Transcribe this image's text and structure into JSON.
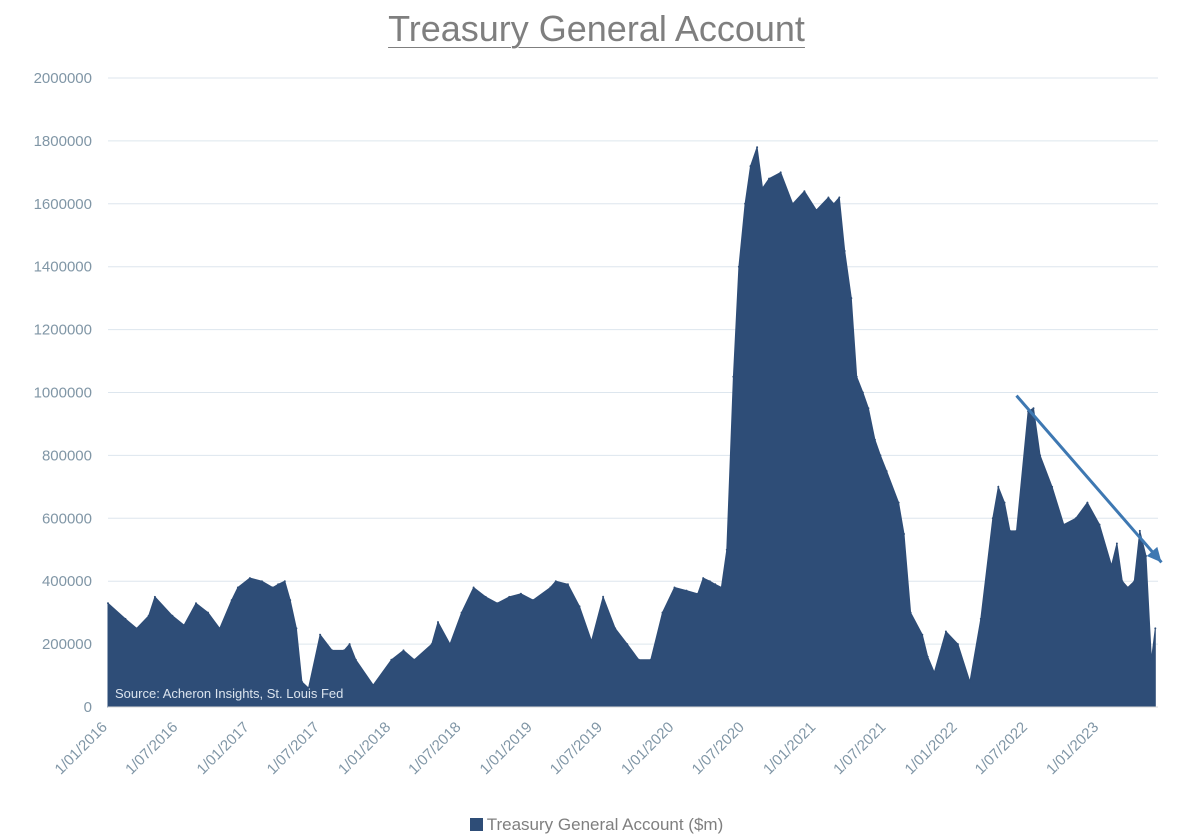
{
  "chart_data": {
    "type": "area",
    "title": "Treasury General Account",
    "xlabel": "",
    "ylabel": "",
    "ylim": [
      0,
      2000000
    ],
    "yticks": [
      0,
      200000,
      400000,
      600000,
      800000,
      1000000,
      1200000,
      1400000,
      1600000,
      1800000,
      2000000
    ],
    "xlim": [
      "2016-01-01",
      "2023-06-01"
    ],
    "xtick_labels": [
      "1/01/2016",
      "1/07/2016",
      "1/01/2017",
      "1/07/2017",
      "1/01/2018",
      "1/07/2018",
      "1/01/2019",
      "1/07/2019",
      "1/01/2020",
      "1/07/2020",
      "1/01/2021",
      "1/07/2021",
      "1/01/2022",
      "1/07/2022",
      "1/01/2023"
    ],
    "xtick_dates": [
      "2016-01-01",
      "2016-07-01",
      "2017-01-01",
      "2017-07-01",
      "2018-01-01",
      "2018-07-01",
      "2019-01-01",
      "2019-07-01",
      "2020-01-01",
      "2020-07-01",
      "2021-01-01",
      "2021-07-01",
      "2022-01-01",
      "2022-07-01",
      "2023-01-01"
    ],
    "grid": true,
    "legend_position": "bottom",
    "colors": {
      "series": "#2e4d77",
      "arrow": "#3e78b2",
      "grid": "#dde6ee",
      "tick_text": "#8096a6"
    },
    "annotation": "Source: Acheron Insights, St. Louis Fed",
    "trend_arrow": {
      "from": [
        "2022-06-01",
        990000
      ],
      "to": [
        "2023-06-10",
        460000
      ]
    },
    "series": [
      {
        "name": "Treasury General Account ($m)",
        "x": [
          "2016-01-01",
          "2016-02-15",
          "2016-03-15",
          "2016-04-15",
          "2016-05-01",
          "2016-06-15",
          "2016-07-15",
          "2016-08-15",
          "2016-09-15",
          "2016-10-15",
          "2016-11-15",
          "2016-12-01",
          "2017-01-01",
          "2017-02-01",
          "2017-03-01",
          "2017-03-15",
          "2017-04-01",
          "2017-04-15",
          "2017-05-01",
          "2017-05-15",
          "2017-06-01",
          "2017-07-01",
          "2017-08-01",
          "2017-09-01",
          "2017-09-15",
          "2017-10-01",
          "2017-11-15",
          "2018-01-01",
          "2018-02-01",
          "2018-03-01",
          "2018-04-15",
          "2018-05-01",
          "2018-06-01",
          "2018-07-01",
          "2018-08-01",
          "2018-09-01",
          "2018-10-01",
          "2018-11-01",
          "2018-12-01",
          "2019-01-01",
          "2019-02-15",
          "2019-03-01",
          "2019-04-01",
          "2019-05-01",
          "2019-06-01",
          "2019-07-01",
          "2019-08-01",
          "2019-09-01",
          "2019-10-01",
          "2019-11-01",
          "2019-12-01",
          "2020-01-01",
          "2020-02-01",
          "2020-03-01",
          "2020-03-15",
          "2020-04-01",
          "2020-04-15",
          "2020-05-01",
          "2020-05-15",
          "2020-06-01",
          "2020-06-15",
          "2020-07-01",
          "2020-07-15",
          "2020-08-01",
          "2020-08-15",
          "2020-09-01",
          "2020-10-01",
          "2020-11-01",
          "2020-12-01",
          "2021-01-01",
          "2021-02-01",
          "2021-02-15",
          "2021-03-01",
          "2021-03-15",
          "2021-04-01",
          "2021-04-15",
          "2021-05-01",
          "2021-05-15",
          "2021-06-01",
          "2021-06-15",
          "2021-07-01",
          "2021-08-01",
          "2021-08-15",
          "2021-09-01",
          "2021-10-01",
          "2021-10-15",
          "2021-11-01",
          "2021-12-01",
          "2022-01-01",
          "2022-02-01",
          "2022-03-01",
          "2022-04-01",
          "2022-04-15",
          "2022-05-01",
          "2022-05-15",
          "2022-06-01",
          "2022-07-01",
          "2022-07-15",
          "2022-08-01",
          "2022-09-01",
          "2022-10-01",
          "2022-11-01",
          "2022-12-01",
          "2023-01-01",
          "2023-02-01",
          "2023-02-15",
          "2023-03-01",
          "2023-03-15",
          "2023-04-01",
          "2023-04-15",
          "2023-05-01",
          "2023-05-15",
          "2023-05-25"
        ],
        "values": [
          330000,
          280000,
          250000,
          290000,
          350000,
          290000,
          260000,
          330000,
          300000,
          250000,
          340000,
          380000,
          410000,
          400000,
          380000,
          390000,
          400000,
          340000,
          250000,
          80000,
          60000,
          230000,
          180000,
          180000,
          200000,
          150000,
          70000,
          150000,
          180000,
          150000,
          200000,
          270000,
          200000,
          300000,
          380000,
          350000,
          330000,
          350000,
          360000,
          340000,
          380000,
          400000,
          390000,
          320000,
          210000,
          350000,
          250000,
          200000,
          150000,
          150000,
          300000,
          380000,
          370000,
          360000,
          410000,
          400000,
          390000,
          380000,
          500000,
          1050000,
          1400000,
          1600000,
          1720000,
          1780000,
          1650000,
          1680000,
          1700000,
          1600000,
          1640000,
          1580000,
          1620000,
          1600000,
          1620000,
          1450000,
          1300000,
          1050000,
          1000000,
          950000,
          850000,
          800000,
          750000,
          650000,
          550000,
          300000,
          230000,
          160000,
          110000,
          240000,
          200000,
          80000,
          280000,
          600000,
          700000,
          650000,
          560000,
          560000,
          940000,
          950000,
          800000,
          700000,
          580000,
          600000,
          650000,
          580000,
          450000,
          520000,
          400000,
          380000,
          400000,
          560000,
          480000,
          150000,
          250000
        ]
      }
    ]
  }
}
